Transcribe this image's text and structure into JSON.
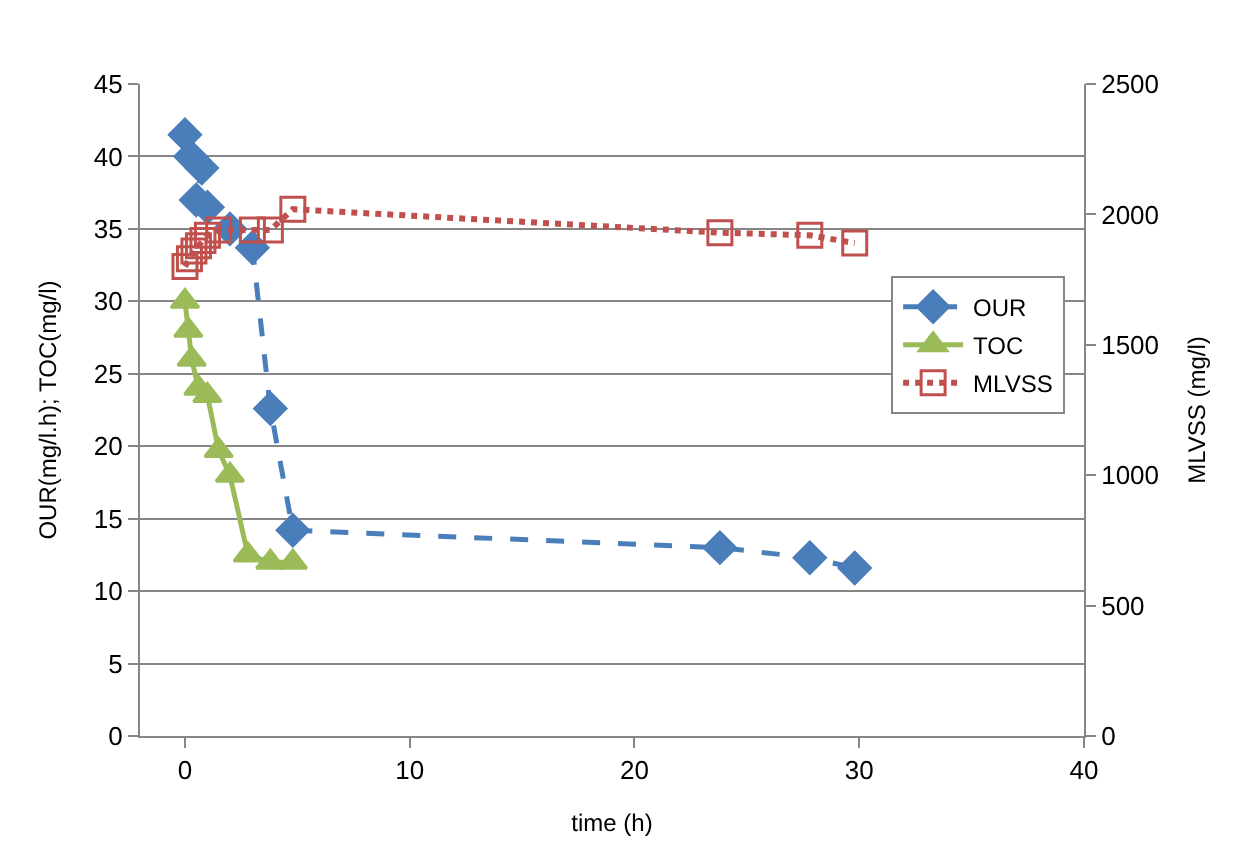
{
  "chart_data": {
    "type": "line",
    "xlabel": "time (h)",
    "ylabel": "OUR(mg/l.h); TOC(mg/l)",
    "y2label": "MLVSS (mg/l)",
    "xlim": [
      -2,
      40
    ],
    "xticks": [
      0,
      10,
      20,
      30,
      40
    ],
    "ylim": [
      0,
      45
    ],
    "yticks": [
      0,
      5,
      10,
      15,
      20,
      25,
      30,
      35,
      40,
      45
    ],
    "y2lim": [
      0,
      2500
    ],
    "y2ticks": [
      0,
      500,
      1000,
      1500,
      2000,
      2500
    ],
    "grid": "y",
    "legend": "right",
    "series": [
      {
        "name": "OUR",
        "color": "#4a7ebb",
        "marker": "diamond",
        "line_style": "dashed",
        "x": [
          0,
          0.25,
          0.75,
          0.5,
          1,
          2,
          3,
          3.8,
          4.8,
          23.8,
          27.8,
          29.8
        ],
        "values": [
          41.5,
          40,
          39.2,
          37,
          36.5,
          35,
          33.7,
          22.6,
          14.2,
          13,
          12.3,
          11.6
        ]
      },
      {
        "name": "TOC",
        "color": "#9bbb59",
        "marker": "triangle",
        "line_style": "solid",
        "x": [
          0,
          0.15,
          0.3,
          0.6,
          1,
          1.5,
          2,
          2.8,
          3.8,
          4.8
        ],
        "values": [
          30,
          28,
          26,
          24,
          23.5,
          19.7,
          18,
          12.5,
          12,
          12
        ]
      },
      {
        "name": "MLVSS",
        "color": "#c0504d",
        "marker": "square",
        "line_style": "dotted",
        "axis": "y2",
        "x": [
          0,
          0.2,
          0.4,
          0.6,
          0.8,
          1,
          1.5,
          3,
          3.8,
          4.8,
          23.8,
          27.8,
          29.8
        ],
        "values": [
          1800,
          1830,
          1860,
          1880,
          1900,
          1920,
          1940,
          1940,
          1940,
          2020,
          1930,
          1920,
          1890
        ]
      }
    ]
  }
}
